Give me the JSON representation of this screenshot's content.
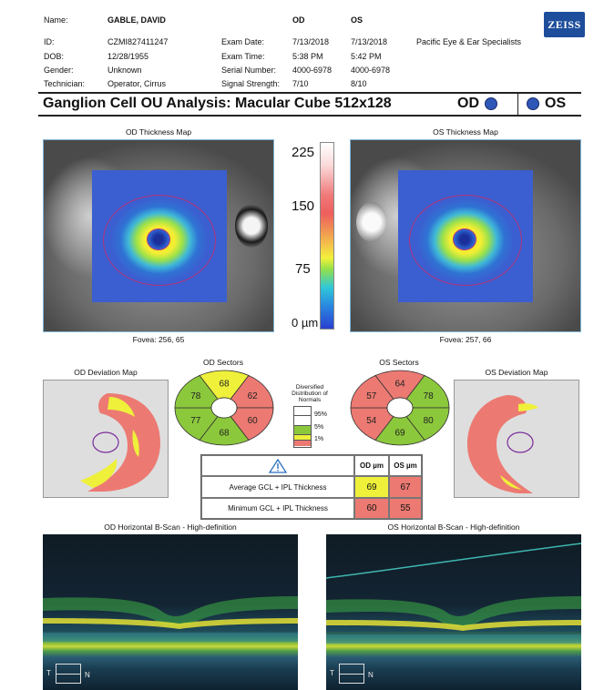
{
  "header": {
    "name_label": "Name:",
    "name_value": "GABLE, DAVID",
    "id_label": "ID:",
    "id_value": "CZMI827411247",
    "dob_label": "DOB:",
    "dob_value": "12/28/1955",
    "gender_label": "Gender:",
    "gender_value": "Unknown",
    "technician_label": "Technician:",
    "technician_value": "Operator, Cirrus",
    "col_od": "OD",
    "col_os": "OS",
    "exam_date_label": "Exam Date:",
    "exam_date_od": "7/13/2018",
    "exam_date_os": "7/13/2018",
    "exam_time_label": "Exam Time:",
    "exam_time_od": "5:38 PM",
    "exam_time_os": "5:42 PM",
    "serial_label": "Serial Number:",
    "serial_od": "4000-6978",
    "serial_os": "4000-6978",
    "signal_label": "Signal Strength:",
    "signal_od": "7/10",
    "signal_os": "8/10",
    "practice": "Pacific Eye & Ear Specialists",
    "logo_text": "ZEISS",
    "logo_color": "#1d4d9b"
  },
  "report_title": "Ganglion Cell OU Analysis: Macular Cube 512x128",
  "eye_tabs": {
    "od": "OD",
    "os": "OS"
  },
  "thickness": {
    "od_title": "OD Thickness Map",
    "os_title": "OS Thickness Map",
    "od_fovea": "Fovea: 256, 65",
    "os_fovea": "Fovea: 257, 66",
    "scale_labels": [
      "225",
      "150",
      "75",
      "0 µm"
    ]
  },
  "deviation": {
    "od_title": "OD Deviation Map",
    "os_title": "OS Deviation Map"
  },
  "sectors": {
    "od_title": "OD Sectors",
    "os_title": "OS Sectors",
    "od_values": {
      "top": "68",
      "top_right": "62",
      "bottom_right": "60",
      "bottom": "68",
      "bottom_left": "77",
      "top_left": "78"
    },
    "os_values": {
      "top": "64",
      "top_right": "78",
      "bottom_right": "80",
      "bottom": "69",
      "bottom_left": "54",
      "top_left": "57"
    },
    "colors": {
      "green": "#8cc83c",
      "yellow": "#eef03a",
      "red": "#ec7a72",
      "white": "#ffffff"
    }
  },
  "legend": {
    "title": "Diversified Distribution of Normals",
    "levels": [
      "95%",
      "5%",
      "1%"
    ]
  },
  "summary_table": {
    "col_od": "OD µm",
    "col_os": "OS µm",
    "rows": [
      {
        "label": "Average GCL + IPL Thickness",
        "od": "69",
        "os": "67"
      },
      {
        "label": "Minimum GCL + IPL Thickness",
        "od": "60",
        "os": "55"
      }
    ]
  },
  "bscan": {
    "od_title": "OD Horizontal B-Scan - High-definition",
    "os_title": "OS Horizontal B-Scan - High-definition",
    "axis_t": "T",
    "axis_n": "N"
  }
}
